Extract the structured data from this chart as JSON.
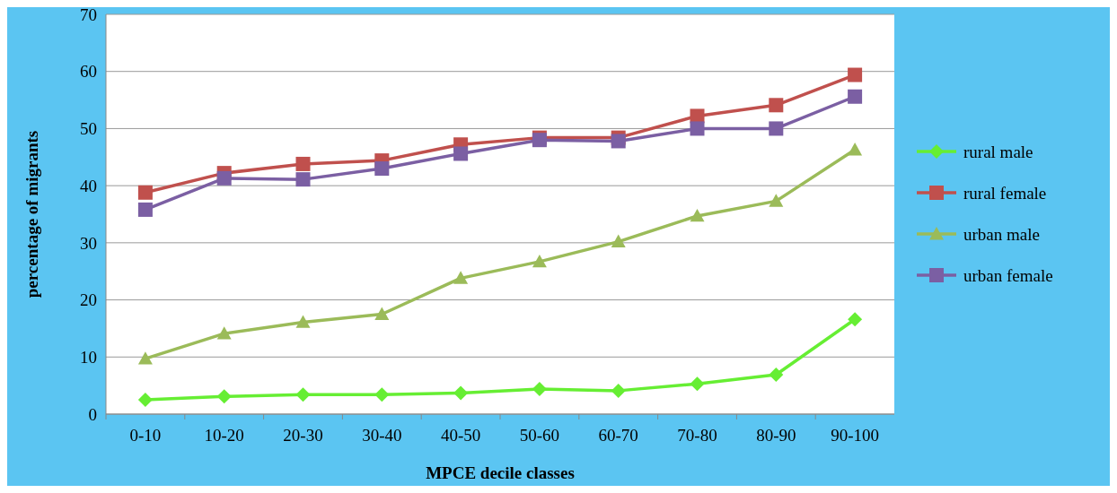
{
  "chart_data": {
    "type": "line",
    "xlabel": "MPCE decile classes",
    "ylabel": "percentage of migrants",
    "categories": [
      "0-10",
      "10-20",
      "20-30",
      "30-40",
      "40-50",
      "50-60",
      "60-70",
      "70-80",
      "80-90",
      "90-100"
    ],
    "series": [
      {
        "name": "rural male",
        "color": "#66ee33",
        "marker": "diamond",
        "values": [
          2.5,
          3.1,
          3.4,
          3.4,
          3.7,
          4.4,
          4.1,
          5.3,
          6.9,
          16.6
        ]
      },
      {
        "name": "rural female",
        "color": "#c0504d",
        "marker": "square",
        "values": [
          38.8,
          42.2,
          43.8,
          44.4,
          47.2,
          48.4,
          48.4,
          52.2,
          54.1,
          59.4
        ]
      },
      {
        "name": "urban male",
        "color": "#9bbb59",
        "marker": "triangle",
        "values": [
          9.7,
          14.1,
          16.1,
          17.5,
          23.8,
          26.7,
          30.2,
          34.7,
          37.3,
          46.3
        ]
      },
      {
        "name": "urban female",
        "color": "#7b5fa3",
        "marker": "square",
        "values": [
          35.8,
          41.3,
          41.1,
          43.0,
          45.6,
          48.0,
          47.8,
          50.0,
          50.0,
          55.6
        ]
      }
    ],
    "ylim": [
      0,
      70
    ],
    "yticks": [
      0,
      10,
      20,
      30,
      40,
      50,
      60,
      70
    ],
    "grid": "y",
    "legend": "right"
  }
}
